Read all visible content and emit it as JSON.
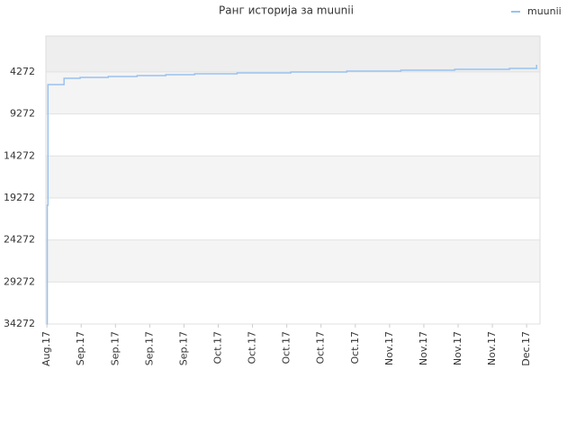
{
  "chart_data": {
    "type": "line",
    "title": "Ранг историја за muunii",
    "step": "post",
    "legend": "top-right",
    "grid": true,
    "x": [
      0,
      0.01,
      0.03,
      0.5,
      0.97,
      1.79,
      2.63,
      3.47,
      4.31,
      5.55,
      7.12,
      8.75,
      10.33,
      11.9,
      13.5,
      14.29
    ],
    "series": [
      {
        "name": "muunii",
        "color": "#99c2f0",
        "values": [
          34272,
          20135,
          5783,
          5034,
          4927,
          4820,
          4712,
          4605,
          4498,
          4391,
          4284,
          4177,
          4070,
          3963,
          3856,
          3427
        ]
      }
    ],
    "xlim": [
      -0.03,
      14.39
    ],
    "xticks": [
      {
        "value": 0,
        "label": "Aug.17"
      },
      {
        "value": 1,
        "label": "Sep.17"
      },
      {
        "value": 2,
        "label": "Sep.17"
      },
      {
        "value": 3,
        "label": "Sep.17"
      },
      {
        "value": 4,
        "label": "Sep.17"
      },
      {
        "value": 5,
        "label": "Oct.17"
      },
      {
        "value": 6,
        "label": "Oct.17"
      },
      {
        "value": 7,
        "label": "Oct.17"
      },
      {
        "value": 8,
        "label": "Oct.17"
      },
      {
        "value": 9,
        "label": "Oct.17"
      },
      {
        "value": 10,
        "label": "Nov.17"
      },
      {
        "value": 11,
        "label": "Nov.17"
      },
      {
        "value": 12,
        "label": "Nov.17"
      },
      {
        "value": 13,
        "label": "Nov.17"
      },
      {
        "value": 14,
        "label": "Dec.17"
      }
    ],
    "ylim": [
      34272,
      0
    ],
    "yticks": [
      4272,
      9272,
      14272,
      19272,
      24272,
      29272,
      34272
    ]
  }
}
